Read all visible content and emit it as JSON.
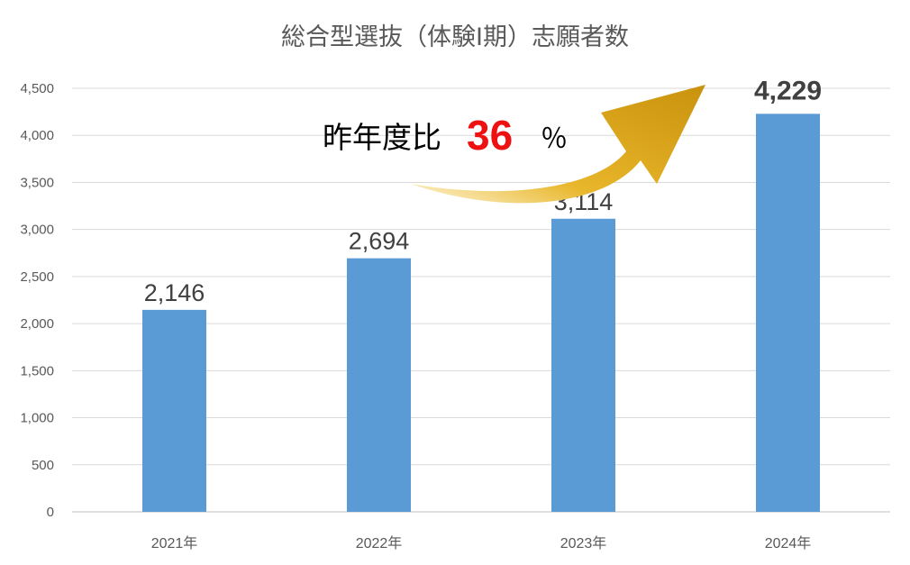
{
  "chart_data": {
    "type": "bar",
    "title": "総合型選抜（体験Ⅰ期）志願者数",
    "categories": [
      "2021年",
      "2022年",
      "2023年",
      "2024年"
    ],
    "series": [
      {
        "values": [
          2146,
          2694,
          3114,
          4229
        ],
        "color": "#5b9bd5"
      }
    ],
    "data_labels": [
      "2,146",
      "2,694",
      "3,114",
      "4,229"
    ],
    "highlight_index": 3,
    "yticks": [
      0,
      500,
      1000,
      1500,
      2000,
      2500,
      3000,
      3500,
      4000,
      4500
    ],
    "ytick_labels": [
      "0",
      "500",
      "1,000",
      "1,500",
      "2,000",
      "2,500",
      "3,000",
      "3,500",
      "4,000",
      "4,500"
    ],
    "ylim": [
      0,
      4500
    ],
    "grid": true,
    "legend": false,
    "annotation": {
      "text": "昨年度比",
      "value": "36",
      "unit": "％",
      "arrow_color": "#d4a017"
    }
  }
}
